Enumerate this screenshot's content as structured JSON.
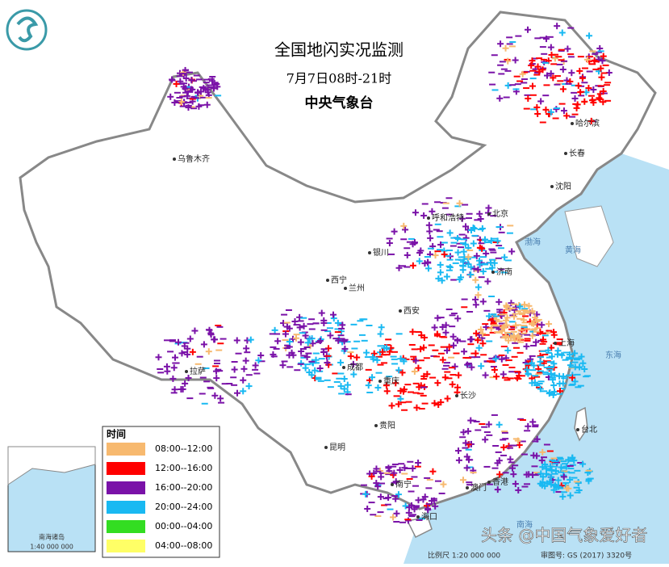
{
  "header": {
    "title": "全国地闪实况监测",
    "subtitle": "7月7日08时-21时",
    "issuer": "中央气象台"
  },
  "legend": {
    "title": "时间",
    "items": [
      {
        "label": "08:00--12:00",
        "color": "#f7b96f"
      },
      {
        "label": "12:00--16:00",
        "color": "#ff0000"
      },
      {
        "label": "16:00--20:00",
        "color": "#7a12a8"
      },
      {
        "label": "20:00--24:00",
        "color": "#19b9f2"
      },
      {
        "label": "00:00--04:00",
        "color": "#33dd22"
      },
      {
        "label": "04:00--08:00",
        "color": "#ffff66"
      }
    ]
  },
  "cities": [
    "乌鲁木齐",
    "哈尔滨",
    "长春",
    "沈阳",
    "北京",
    "呼和浩特",
    "银川",
    "济南",
    "西宁",
    "兰州",
    "西安",
    "上海",
    "成都",
    "重庆",
    "长沙",
    "贵阳",
    "昆明",
    "南宁",
    "澳门",
    "香港",
    "拉萨",
    "台北",
    "海口"
  ],
  "seas": [
    "渤海",
    "黄海",
    "东海",
    "南海"
  ],
  "inset": {
    "label": "南海诸岛",
    "scale": "1:40 000 000"
  },
  "footer": {
    "scale": "比例尺 1:20 000 000",
    "approval": "审图号: GS (2017) 3320号"
  },
  "watermark": "头条 @中国气象爱好者"
}
